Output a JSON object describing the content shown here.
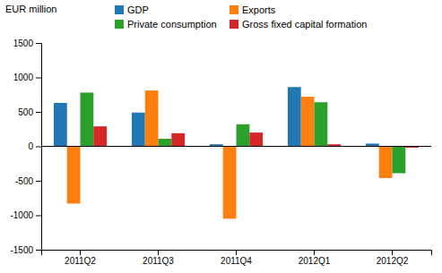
{
  "chart_data": {
    "type": "bar",
    "ylabel": "EUR million",
    "categories": [
      "2011Q2",
      "2011Q3",
      "2011Q4",
      "2012Q1",
      "2012Q2"
    ],
    "series": [
      {
        "name": "GDP",
        "values": [
          630,
          490,
          30,
          860,
          40
        ]
      },
      {
        "name": "Exports",
        "values": [
          -830,
          810,
          -1050,
          720,
          -460
        ]
      },
      {
        "name": "Private consumption",
        "values": [
          780,
          110,
          320,
          640,
          -390
        ]
      },
      {
        "name": "Gross fixed capital formation",
        "values": [
          290,
          190,
          200,
          30,
          -20
        ]
      }
    ],
    "ylim": [
      -1500,
      1500
    ],
    "yticks": [
      -1500,
      -1000,
      -500,
      0,
      500,
      1000,
      1500
    ],
    "grid": false,
    "legend": "top"
  }
}
